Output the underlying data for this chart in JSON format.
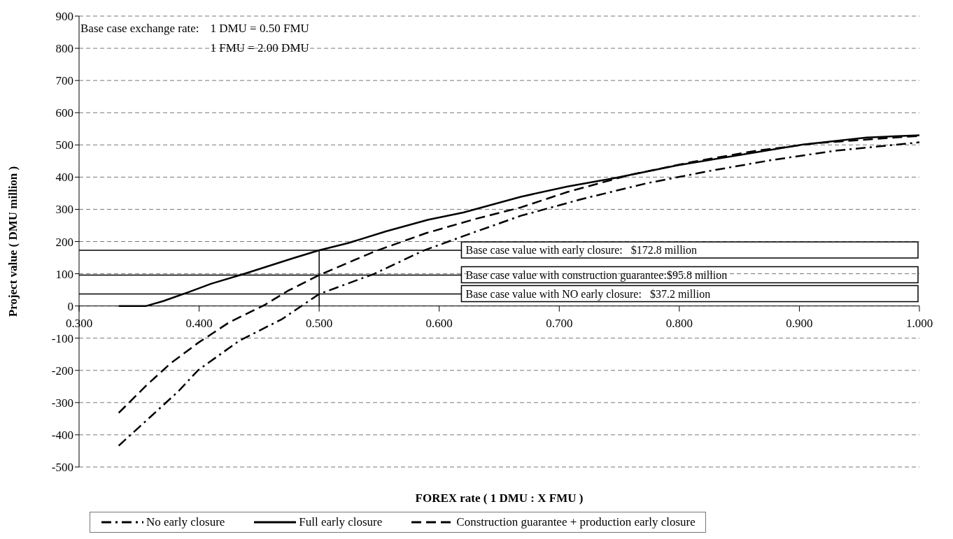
{
  "chart_data": {
    "type": "line",
    "xlabel": "FOREX rate ( 1 DMU : X FMU )",
    "ylabel": "Project value ( DMU million )",
    "xlim": [
      0.3,
      1.0
    ],
    "xticks": [
      {
        "value": 0.3,
        "label": "0.300"
      },
      {
        "value": 0.4,
        "label": "0.400"
      },
      {
        "value": 0.5,
        "label": "0.500"
      },
      {
        "value": 0.6,
        "label": "0.600"
      },
      {
        "value": 0.7,
        "label": "0.700"
      },
      {
        "value": 0.8,
        "label": "0.800"
      },
      {
        "value": 0.9,
        "label": "0.900"
      },
      {
        "value": 1.0,
        "label": "1.000"
      }
    ],
    "ylim": [
      -500,
      900
    ],
    "yticks": [
      -500,
      -400,
      -300,
      -200,
      -100,
      0,
      100,
      200,
      300,
      400,
      500,
      600,
      700,
      800,
      900
    ],
    "grid": "y",
    "legend": "bottom",
    "marker": "none",
    "series": [
      {
        "name": "No early closure",
        "color": "#000000",
        "line_style": "dashed",
        "x": [
          0.333,
          0.356,
          0.383,
          0.399,
          0.433,
          0.469,
          0.5,
          0.546,
          0.587,
          0.63,
          0.668,
          0.72,
          0.773,
          0.825,
          0.877,
          0.93,
          1.0
        ],
        "values": [
          -434,
          -356,
          -264,
          -200,
          -109,
          -41,
          37,
          100,
          172,
          230,
          280,
          333,
          381,
          419,
          453,
          482,
          508
        ]
      },
      {
        "name": "Full early closure",
        "color": "#000000",
        "line_style": "solid",
        "x": [
          0.333,
          0.356,
          0.37,
          0.392,
          0.41,
          0.437,
          0.478,
          0.5,
          0.524,
          0.556,
          0.591,
          0.62,
          0.668,
          0.707,
          0.746,
          0.799,
          0.851,
          0.903,
          0.956,
          1.0
        ],
        "values": [
          0,
          0,
          15,
          44,
          69,
          99,
          148,
          173,
          195,
          232,
          268,
          290,
          339,
          371,
          397,
          437,
          469,
          501,
          523,
          530
        ]
      },
      {
        "name": "Construction guarantee + production early closure",
        "color": "#000000",
        "line_style": "dashed",
        "x": [
          0.333,
          0.356,
          0.376,
          0.399,
          0.425,
          0.455,
          0.474,
          0.5,
          0.546,
          0.589,
          0.63,
          0.668,
          0.707,
          0.759,
          0.812,
          0.864,
          0.916,
          1.0
        ],
        "values": [
          -332,
          -247,
          -179,
          -115,
          -51,
          4,
          47,
          96,
          169,
          226,
          270,
          306,
          354,
          407,
          448,
          482,
          506,
          528
        ]
      }
    ],
    "ref_lines": [
      {
        "axis": "y",
        "value": 172.8,
        "label": "Base case value with early closure:   $172.8 million",
        "color": "#000000"
      },
      {
        "axis": "y",
        "value": 95.8,
        "label": "Base case value with construction guarantee:$95.8 million",
        "color": "#000000"
      },
      {
        "axis": "y",
        "value": 37.2,
        "label": "Base case value with NO early closure:   $37.2 million",
        "color": "#000000"
      },
      {
        "axis": "x",
        "value": 0.5,
        "color": "#000000"
      }
    ],
    "annotations": [
      "Base case exchange rate:",
      "1 DMU = 0.50 FMU",
      "1 FMU = 2.00 DMU"
    ]
  }
}
